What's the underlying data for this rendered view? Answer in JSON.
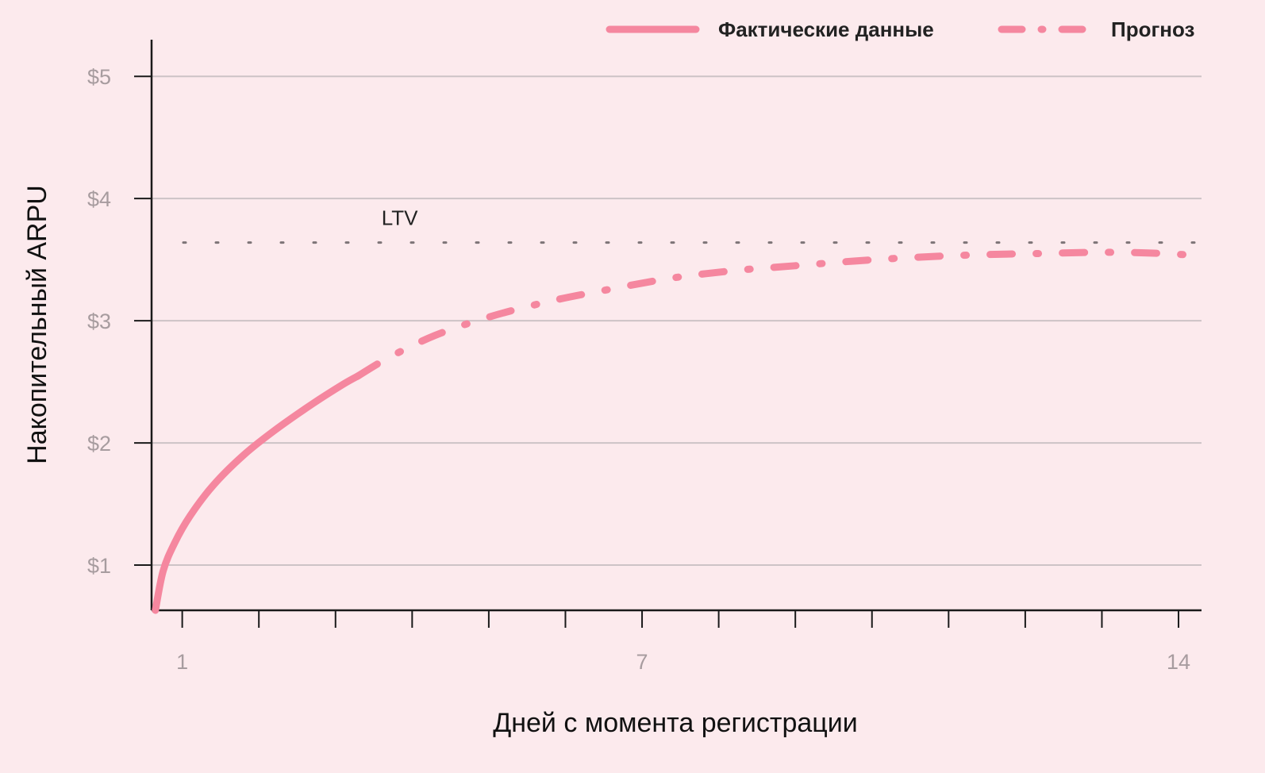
{
  "chart_data": {
    "type": "line",
    "xlabel": "Дней с момента регистрации",
    "ylabel": "Накопительный ARPU",
    "xlim": [
      0.6,
      14.3
    ],
    "ylim": [
      0.63,
      5.3
    ],
    "x_ticks": [
      1,
      2,
      3,
      4,
      5,
      6,
      7,
      8,
      9,
      10,
      11,
      12,
      13,
      14
    ],
    "x_tick_labels": [
      {
        "x": 1,
        "label": "1"
      },
      {
        "x": 7,
        "label": "7"
      },
      {
        "x": 14,
        "label": "14"
      }
    ],
    "y_ticks": [
      {
        "y": 1,
        "label": "$1"
      },
      {
        "y": 2,
        "label": "$2"
      },
      {
        "y": 3,
        "label": "$3"
      },
      {
        "y": 4,
        "label": "$4"
      },
      {
        "y": 5,
        "label": "$5"
      }
    ],
    "grid": "horizontal",
    "legend_position": "top-right",
    "series": [
      {
        "name": "Фактические данные",
        "style": "solid",
        "color": "#f5879f",
        "points": [
          [
            0.65,
            0.63
          ],
          [
            0.75,
            0.95
          ],
          [
            0.9,
            1.18
          ],
          [
            1.1,
            1.4
          ],
          [
            1.4,
            1.65
          ],
          [
            1.8,
            1.9
          ],
          [
            2.2,
            2.1
          ],
          [
            2.7,
            2.32
          ],
          [
            3.1,
            2.48
          ],
          [
            3.3,
            2.55
          ]
        ]
      },
      {
        "name": "Прогноз",
        "style": "dashdot",
        "color": "#f5879f",
        "points": [
          [
            3.3,
            2.55
          ],
          [
            3.7,
            2.7
          ],
          [
            4.3,
            2.88
          ],
          [
            5,
            3.03
          ],
          [
            5.8,
            3.16
          ],
          [
            6.6,
            3.26
          ],
          [
            7.4,
            3.35
          ],
          [
            8.2,
            3.41
          ],
          [
            9,
            3.45
          ],
          [
            9.8,
            3.49
          ],
          [
            10.6,
            3.52
          ],
          [
            11.4,
            3.54
          ],
          [
            12.2,
            3.55
          ],
          [
            13,
            3.56
          ],
          [
            13.6,
            3.555
          ],
          [
            14.1,
            3.54
          ]
        ]
      }
    ],
    "annotations": [
      {
        "type": "hline",
        "y": 3.64,
        "style": "dotted",
        "label": "LTV",
        "label_x": 3.6
      }
    ]
  }
}
